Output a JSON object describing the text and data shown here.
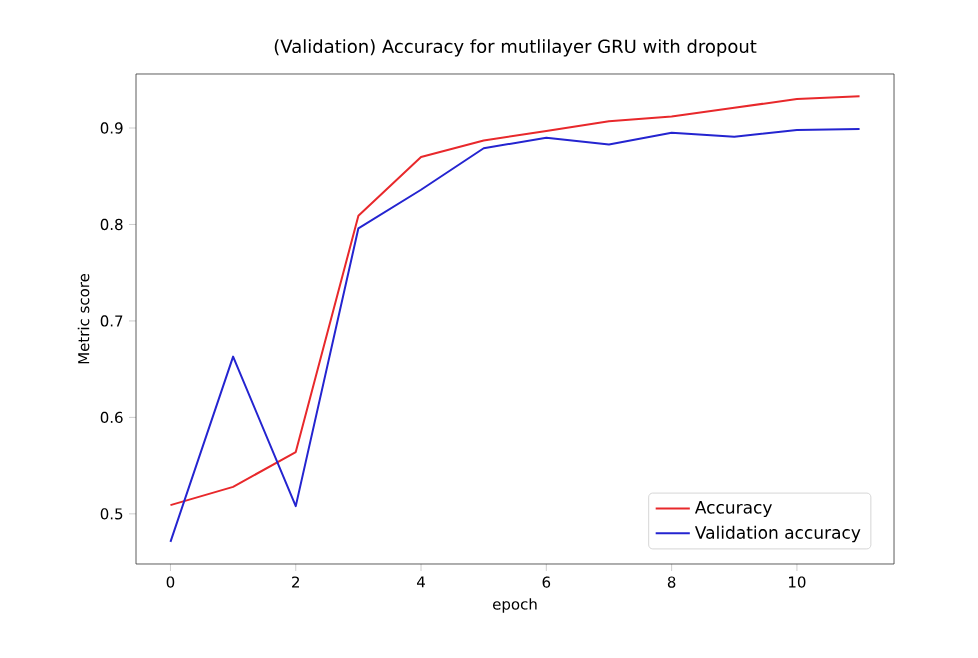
{
  "chart_data": {
    "type": "line",
    "title": "(Validation) Accuracy for mutlilayer GRU with dropout",
    "xlabel": "epoch",
    "ylabel": "Metric score",
    "x": [
      0,
      1,
      2,
      3,
      4,
      5,
      6,
      7,
      8,
      9,
      10,
      11
    ],
    "series": [
      {
        "name": "Accuracy",
        "color": "#e8282b",
        "values": [
          0.509,
          0.528,
          0.564,
          0.809,
          0.87,
          0.887,
          0.897,
          0.907,
          0.912,
          0.921,
          0.93,
          0.933
        ]
      },
      {
        "name": "Validation accuracy",
        "color": "#2424d0",
        "values": [
          0.471,
          0.663,
          0.508,
          0.796,
          0.836,
          0.879,
          0.89,
          0.883,
          0.895,
          0.891,
          0.898,
          0.899
        ]
      }
    ],
    "xlim": [
      -0.55,
      11.55
    ],
    "ylim": [
      0.448,
      0.956
    ],
    "xticks": [
      0,
      2,
      4,
      6,
      8,
      10
    ],
    "yticks": [
      0.5,
      0.6,
      0.7,
      0.8,
      0.9
    ],
    "legend": "bottom right",
    "grid": false,
    "marker": "none",
    "line_style": "solid"
  }
}
